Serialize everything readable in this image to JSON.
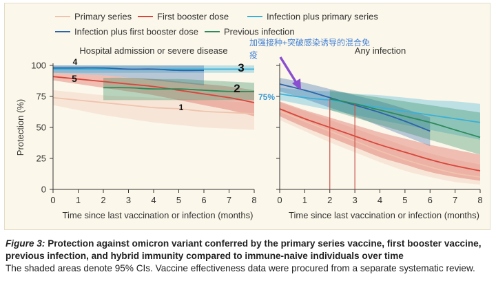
{
  "legend": [
    {
      "name": "Primary series",
      "color": "#f0c3ad"
    },
    {
      "name": "First booster dose",
      "color": "#d8453a"
    },
    {
      "name": "Infection plus primary series",
      "color": "#3ab0d8"
    },
    {
      "name": "Infection plus first booster dose",
      "color": "#2c64a8"
    },
    {
      "name": "Previous infection",
      "color": "#2d8a5a"
    }
  ],
  "annotations": {
    "hybrid_note": "加强接种+突破感染诱导的混合免疫",
    "pct_75": "75%",
    "left_ranks": [
      "1",
      "2",
      "3",
      "4",
      "5"
    ]
  },
  "caption": {
    "label": "Figure 3:",
    "title": "Protection against omicron variant conferred by the primary series vaccine, first booster vaccine, previous infection, and hybrid immunity compared to immune-naive individuals over time",
    "note": "The shaded areas denote 95% CIs. Vaccine effectiveness data were procured from a separate systematic review."
  },
  "chart_data": [
    {
      "type": "line",
      "title": "Hospital admission or severe disease",
      "xlabel": "Time since last vaccination or infection (months)",
      "ylabel": "Protection (%)",
      "xlim": [
        0,
        8
      ],
      "ylim": [
        0,
        100
      ],
      "xticks": [
        "0",
        "1",
        "2",
        "3",
        "4",
        "5",
        "6",
        "7",
        "8"
      ],
      "yticks": [
        "0",
        "25",
        "50",
        "75",
        "100"
      ],
      "grid": false,
      "legend": "top",
      "series": [
        {
          "name": "Primary series",
          "color": "#f0c3ad",
          "x": [
            0,
            1,
            2,
            3,
            4,
            5,
            6,
            7,
            8
          ],
          "y": [
            74,
            72,
            70,
            68,
            66,
            65,
            63,
            62,
            61
          ],
          "lower": [
            68,
            64,
            60,
            57,
            54,
            52,
            50,
            49,
            48
          ],
          "upper": [
            80,
            78,
            76,
            75,
            74,
            73,
            72,
            71,
            70
          ]
        },
        {
          "name": "First booster dose",
          "color": "#d8453a",
          "x": [
            0,
            1,
            2,
            3,
            4,
            5,
            6,
            7,
            8
          ],
          "y": [
            91,
            89,
            87,
            85,
            83,
            80,
            77,
            74,
            70
          ],
          "lower": [
            88,
            85,
            82,
            79,
            76,
            72,
            68,
            64,
            59
          ],
          "upper": [
            94,
            93,
            92,
            90,
            89,
            87,
            85,
            83,
            80
          ]
        },
        {
          "name": "Infection plus primary series",
          "color": "#3ab0d8",
          "x": [
            0,
            1,
            2,
            3,
            4,
            5,
            6,
            7,
            8
          ],
          "y": [
            97,
            97,
            97,
            97,
            97,
            97,
            97,
            97,
            97
          ],
          "lower": [
            94,
            94,
            94,
            94,
            94,
            94,
            94,
            94,
            94
          ],
          "upper": [
            100,
            100,
            100,
            100,
            100,
            100,
            100,
            100,
            100
          ]
        },
        {
          "name": "Infection plus first booster dose",
          "color": "#2c64a8",
          "x": [
            0,
            1,
            2,
            3,
            4,
            5,
            6
          ],
          "y": [
            98,
            98,
            98,
            97,
            97,
            96,
            96
          ],
          "lower": [
            94,
            93,
            92,
            90,
            88,
            86,
            84
          ],
          "upper": [
            100,
            100,
            100,
            100,
            100,
            100,
            100
          ]
        },
        {
          "name": "Previous infection",
          "color": "#2d8a5a",
          "x": [
            2,
            3,
            4,
            5,
            6,
            7,
            8
          ],
          "y": [
            82,
            82,
            81,
            81,
            80,
            79,
            79
          ],
          "lower": [
            72,
            72,
            72,
            72,
            72,
            72,
            72
          ],
          "upper": [
            90,
            90,
            89,
            89,
            88,
            87,
            86
          ]
        }
      ]
    },
    {
      "type": "line",
      "title": "Any infection",
      "xlabel": "Time since last vaccination or infection (months)",
      "ylabel": "",
      "xlim": [
        0,
        8
      ],
      "ylim": [
        0,
        100
      ],
      "xticks": [
        "0",
        "1",
        "2",
        "3",
        "4",
        "5",
        "6",
        "7",
        "8"
      ],
      "yticks": [
        "0",
        "25",
        "50",
        "75",
        "100"
      ],
      "grid": false,
      "legend": "top",
      "series": [
        {
          "name": "Primary series",
          "color": "#f0c3ad",
          "x": [
            0,
            1,
            2,
            3,
            4,
            5,
            6,
            7,
            8
          ],
          "y": [
            63,
            55,
            47,
            39,
            31,
            24,
            18,
            13,
            10
          ],
          "lower": [
            56,
            47,
            38,
            30,
            22,
            15,
            10,
            6,
            4
          ],
          "upper": [
            70,
            63,
            56,
            49,
            42,
            35,
            29,
            24,
            20
          ]
        },
        {
          "name": "First booster dose",
          "color": "#d8453a",
          "x": [
            0,
            1,
            2,
            3,
            4,
            5,
            6,
            7,
            8
          ],
          "y": [
            65,
            57,
            50,
            43,
            36,
            30,
            24,
            19,
            15
          ],
          "lower": [
            59,
            50,
            42,
            34,
            26,
            20,
            14,
            10,
            7
          ],
          "upper": [
            71,
            64,
            58,
            52,
            46,
            41,
            36,
            32,
            28
          ]
        },
        {
          "name": "Infection plus primary series",
          "color": "#3ab0d8",
          "x": [
            0,
            1,
            2,
            3,
            4,
            5,
            6,
            7,
            8
          ],
          "y": [
            77,
            74,
            72,
            69,
            66,
            63,
            60,
            57,
            54
          ],
          "lower": [
            72,
            68,
            64,
            60,
            56,
            52,
            48,
            44,
            40
          ],
          "upper": [
            82,
            80,
            79,
            77,
            76,
            74,
            72,
            71,
            69
          ]
        },
        {
          "name": "Infection plus first booster dose",
          "color": "#2c64a8",
          "x": [
            0,
            1,
            2,
            3,
            4,
            5,
            6
          ],
          "y": [
            85,
            80,
            74,
            68,
            62,
            55,
            47
          ],
          "lower": [
            79,
            73,
            66,
            59,
            51,
            43,
            35
          ],
          "upper": [
            90,
            86,
            81,
            76,
            71,
            65,
            58
          ]
        },
        {
          "name": "Previous infection",
          "color": "#2d8a5a",
          "x": [
            2,
            3,
            4,
            5,
            6,
            7,
            8
          ],
          "y": [
            73,
            69,
            64,
            59,
            54,
            48,
            42
          ],
          "lower": [
            64,
            58,
            52,
            46,
            40,
            34,
            28
          ],
          "upper": [
            80,
            77,
            74,
            71,
            68,
            65,
            62
          ]
        }
      ]
    }
  ]
}
